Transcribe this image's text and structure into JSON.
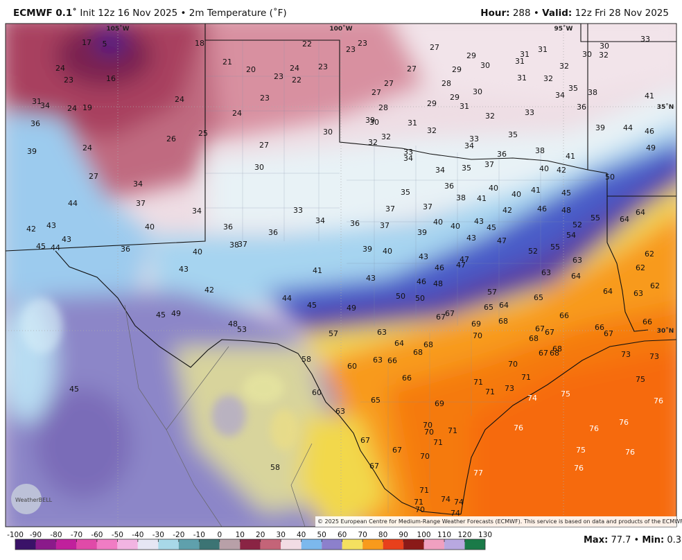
{
  "header": {
    "model": "ECMWF 0.1˚",
    "title": "Init 12z 16 Nov 2025 • 2m Temperature (˚F)",
    "hour_label": "Hour:",
    "hour": "288",
    "separator": "•",
    "valid_label": "Valid:",
    "valid": "12z Fri 28 Nov 2025"
  },
  "map": {
    "longitudes": [
      "105˚W",
      "100˚W",
      "95˚W"
    ],
    "latitudes": [
      "35˚N",
      "30˚N"
    ],
    "temperatures": [
      17,
      5,
      18,
      22,
      23,
      23,
      27,
      30,
      33,
      24,
      23,
      16,
      21,
      20,
      23,
      24,
      22,
      23,
      27,
      29,
      31,
      31,
      30,
      32,
      29,
      30,
      31,
      32,
      27,
      28,
      30,
      31,
      32,
      35,
      38,
      41,
      31,
      34,
      24,
      19,
      24,
      23,
      27,
      28,
      29,
      29,
      31,
      32,
      34,
      36,
      33,
      24,
      36,
      39,
      30,
      31,
      32,
      33,
      34,
      35,
      36,
      39,
      44,
      46,
      49,
      25,
      26,
      30,
      32,
      32,
      27,
      24,
      39,
      33,
      34,
      35,
      37,
      38,
      41,
      40,
      42,
      50,
      30,
      34,
      36,
      38,
      40,
      41,
      40,
      45,
      27,
      34,
      35,
      41,
      44,
      37,
      37,
      37,
      42,
      46,
      48,
      64,
      64,
      33,
      34,
      34,
      36,
      36,
      40,
      55,
      52,
      42,
      43,
      43,
      36,
      37,
      39,
      40,
      40,
      43,
      45,
      43,
      47,
      54,
      45,
      44,
      36,
      38,
      37,
      40,
      39,
      40,
      52,
      55,
      62,
      43,
      41,
      43,
      46,
      47,
      47,
      63,
      62,
      63,
      64,
      42,
      43,
      46,
      48,
      57,
      62,
      44,
      45,
      50,
      50,
      65,
      64,
      63,
      45,
      49,
      49,
      65,
      64,
      66,
      67,
      67,
      69,
      68,
      66,
      48,
      53,
      66,
      67,
      67,
      67,
      57,
      63,
      70,
      68,
      64,
      68,
      68,
      67,
      68,
      58,
      60,
      63,
      66,
      68,
      70,
      73,
      73,
      45,
      66,
      71,
      71,
      71,
      73,
      74,
      75,
      75,
      76,
      60,
      65,
      69,
      63,
      70,
      70,
      71,
      76,
      76,
      76,
      71,
      67,
      67,
      70,
      75,
      76,
      58,
      67,
      76,
      77,
      71,
      74,
      74,
      71,
      70,
      74
    ]
  },
  "logo": "WeatherBELL",
  "credit": "© 2025 European Centre for Medium-Range Weather Forecasts (ECMWF). This service is based on data and products of the ECMWF.",
  "colorbar": {
    "ticks": [
      -100,
      -90,
      -80,
      -70,
      -60,
      -50,
      -40,
      -30,
      -20,
      -10,
      0,
      10,
      20,
      30,
      40,
      50,
      60,
      70,
      80,
      90,
      100,
      110,
      120,
      130
    ],
    "colors": [
      "#3a1268",
      "#8a1a8a",
      "#c0209c",
      "#e04aa8",
      "#f07cc4",
      "#f2b4e2",
      "#e6e6f4",
      "#a8d8e8",
      "#5fa0ac",
      "#3c7474",
      "#b8a0a8",
      "#8a2444",
      "#c46478",
      "#f2dce4",
      "#7cb8ec",
      "#8c80cc",
      "#f4e060",
      "#f89a1c",
      "#e8401c",
      "#8a1a18",
      "#f0a0c0",
      "#b8a8e0",
      "#1a7a48"
    ]
  },
  "stats": {
    "max_label": "Max:",
    "max": "77.7",
    "separator": "•",
    "min_label": "Min:",
    "min": "0.3"
  }
}
